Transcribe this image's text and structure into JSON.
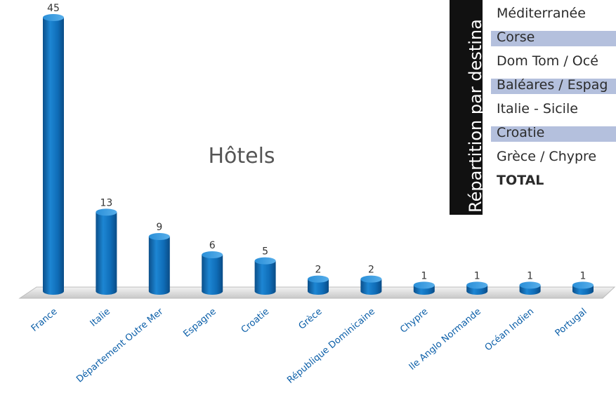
{
  "chart_data": {
    "type": "bar",
    "title": "Hôtels",
    "categories": [
      "France",
      "Italie",
      "Département Outre Mer",
      "Espagne",
      "Croatie",
      "Grèce",
      "République Dominicaine",
      "Chypre",
      "Ile Anglo Normande",
      "Océan Indien",
      "Portugal"
    ],
    "values": [
      45,
      13,
      9,
      6,
      5,
      2,
      2,
      1,
      1,
      1,
      1
    ],
    "xlabel": "",
    "ylabel": "",
    "ylim": [
      0,
      45
    ],
    "grid": false,
    "legend": "none",
    "bar_color": "#0f6db8"
  },
  "side_table": {
    "title": "Répartition par destina",
    "rows": [
      {
        "label": "Méditerranée",
        "shaded": false,
        "bold": false
      },
      {
        "label": "Corse",
        "shaded": true,
        "bold": false
      },
      {
        "label": "Dom Tom / Océ",
        "shaded": false,
        "bold": false
      },
      {
        "label": "Baléares / Espag",
        "shaded": true,
        "bold": false
      },
      {
        "label": "Italie - Sicile",
        "shaded": false,
        "bold": false
      },
      {
        "label": "Croatie",
        "shaded": true,
        "bold": false
      },
      {
        "label": "Grèce / Chypre",
        "shaded": false,
        "bold": false
      },
      {
        "label": "TOTAL",
        "shaded": false,
        "bold": true
      }
    ]
  }
}
